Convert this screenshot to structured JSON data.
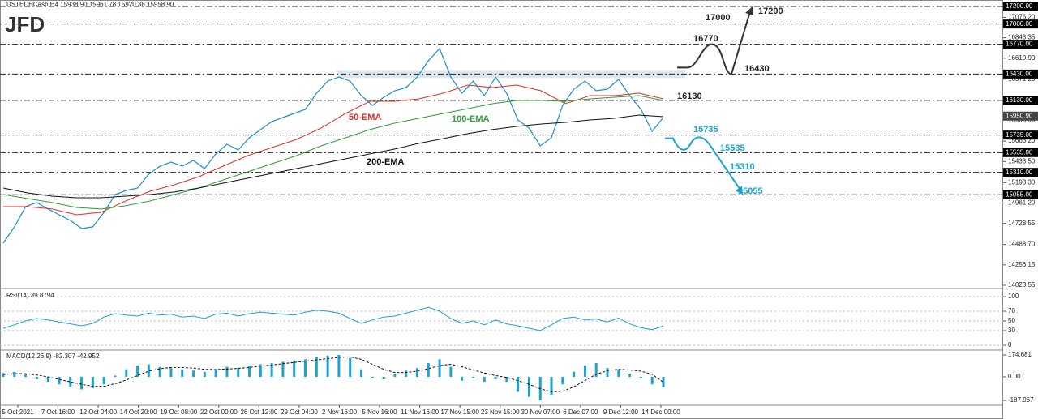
{
  "chart_data": [
    {
      "type": "line",
      "logo": "JFD",
      "header": "USTECHCash,H4  15938.90 15961.78 15920.38 15958.90",
      "ylim": [
        14023.55,
        17200
      ],
      "yticks": [
        {
          "value": 17076.2,
          "label": "17076.20"
        },
        16843.35,
        {
          "value": 16610.9,
          "label": "16610.90"
        },
        {
          "value": 16371.2,
          "label": "16371.20"
        },
        {
          "value": 15905.9,
          "label": "15905.90"
        },
        {
          "value": 15666.2,
          "label": "15666.20"
        },
        {
          "value": 15433.5,
          "label": "15433.50"
        },
        {
          "value": 15193.3,
          "label": "15193.30"
        },
        {
          "value": 14961.2,
          "label": "14961.20"
        },
        14728.55,
        {
          "value": 14488.7,
          "label": "14488.70"
        },
        14256.15,
        14023.55
      ],
      "levels": [
        {
          "value": 17200,
          "label": "17200.00",
          "color": "#222222"
        },
        {
          "value": 17000,
          "label": "17000.00",
          "color": "#222222"
        },
        {
          "value": 16770,
          "label": "16770.00",
          "color": "#222222"
        },
        {
          "value": 16430,
          "label": "16430.00",
          "color": "#222222"
        },
        {
          "value": 16130,
          "label": "16130.00",
          "color": "#222222"
        },
        {
          "value": 15735,
          "label": "15735.00",
          "color": "#1aa3d4"
        },
        {
          "value": 15535,
          "label": "15535.00",
          "color": "#1aa3d4"
        },
        {
          "value": 15310,
          "label": "15310.00",
          "color": "#1aa3d4"
        },
        {
          "value": 15055,
          "label": "15055.00",
          "color": "#1aa3d4"
        }
      ],
      "current": {
        "value": 15950.9,
        "label": "15950.90"
      },
      "series": [
        {
          "color": "#1e90c8",
          "values": [
            14504,
            14689,
            14920,
            14966,
            14892,
            14827,
            14762,
            14670,
            14689,
            14855,
            15058,
            15104,
            15132,
            15289,
            15381,
            15427,
            15381,
            15446,
            15353,
            15520,
            15630,
            15566,
            15704,
            15797,
            15889,
            15935,
            15981,
            16027,
            16212,
            16350,
            16396,
            16350,
            16184,
            16073,
            16165,
            16240,
            16277,
            16396,
            16581,
            16720,
            16396,
            16212,
            16350,
            16184,
            16396,
            16212,
            15907,
            15815,
            15612,
            15704,
            16073,
            16258,
            16350,
            16240,
            16258,
            16369,
            16184,
            16027,
            15778,
            15935
          ]
        },
        {
          "name": "50-EMA",
          "color": "#e0302a",
          "values": [
            14919,
            14919,
            14892,
            14827,
            14855,
            14984,
            15095,
            15169,
            15261,
            15381,
            15501,
            15593,
            15686,
            15815,
            15981,
            16120,
            16120,
            16147,
            16212,
            16304,
            16277,
            16304,
            16240,
            16092,
            16184,
            16184,
            16212,
            16147
          ]
        },
        {
          "name": "100-EMA",
          "color": "#2e9e3a",
          "values": [
            15058,
            15012,
            14966,
            14910,
            14892,
            14929,
            14984,
            15058,
            15132,
            15224,
            15316,
            15409,
            15501,
            15612,
            15704,
            15797,
            15870,
            15926,
            15981,
            16036,
            16092,
            16129,
            16129,
            16120,
            16147,
            16166,
            16184,
            16129
          ]
        },
        {
          "name": "200-EMA",
          "color": "#111111",
          "values": [
            15132,
            15076,
            15039,
            15021,
            15021,
            15039,
            15058,
            15086,
            15132,
            15187,
            15243,
            15298,
            15353,
            15409,
            15464,
            15520,
            15575,
            15640,
            15695,
            15751,
            15797,
            15833,
            15861,
            15880,
            15907,
            15926,
            15963,
            15944
          ]
        }
      ]
    },
    {
      "type": "line",
      "title": "RSI(14) 39.8794",
      "ylim": [
        0,
        100
      ],
      "yticks": [
        0,
        30,
        50,
        70,
        100
      ],
      "series": [
        {
          "color": "#1aa3d4",
          "values": [
            35,
            42,
            50,
            55,
            52,
            48,
            44,
            40,
            45,
            58,
            65,
            62,
            60,
            66,
            62,
            64,
            58,
            60,
            55,
            64,
            66,
            60,
            65,
            68,
            66,
            64,
            62,
            68,
            72,
            70,
            66,
            55,
            45,
            52,
            58,
            60,
            66,
            72,
            78,
            70,
            55,
            45,
            50,
            42,
            52,
            44,
            40,
            35,
            30,
            42,
            55,
            58,
            52,
            54,
            48,
            56,
            44,
            36,
            32,
            39.8794
          ]
        }
      ]
    },
    {
      "type": "bar",
      "title": "MACD(12,26,9) -82.307 -42.952",
      "ylim": [
        -187.967,
        174.681
      ],
      "yticks": [
        174.681,
        {
          "value": 0,
          "label": "0.00"
        },
        -187.967
      ],
      "xticks": [
        "5 Oct 2021",
        "7 Oct 16:00",
        "12 Oct 04:00",
        "14 Oct 20:00",
        "19 Oct 08:00",
        "22 Oct 00:00",
        "26 Oct 12:00",
        "29 Oct 04:00",
        "2 Nov 16:00",
        "5 Nov 16:00",
        "11 Nov 16:00",
        "17 Nov 15:00",
        "23 Nov 15:00",
        "30 Nov 07:00",
        "6 Dec 07:00",
        "9 Dec 12:00",
        "14 Dec 00:00"
      ],
      "series": [
        {
          "color": "#1aa3d4",
          "values": [
            30,
            40,
            20,
            -20,
            -40,
            -60,
            -80,
            -100,
            -90,
            -60,
            10,
            60,
            90,
            100,
            80,
            70,
            60,
            50,
            40,
            60,
            80,
            70,
            90,
            100,
            110,
            120,
            130,
            140,
            160,
            170,
            175,
            150,
            60,
            -10,
            -20,
            20,
            50,
            70,
            110,
            140,
            80,
            -30,
            -10,
            -40,
            -20,
            -40,
            -120,
            -160,
            -187,
            -150,
            -60,
            40,
            90,
            110,
            70,
            60,
            20,
            -10,
            -60,
            -82.307
          ]
        },
        {
          "color": "#111111",
          "values": [
            20,
            25,
            25,
            15,
            0,
            -20,
            -40,
            -60,
            -75,
            -75,
            -55,
            -25,
            10,
            45,
            65,
            75,
            75,
            70,
            60,
            58,
            62,
            68,
            75,
            85,
            95,
            105,
            115,
            125,
            135,
            145,
            155,
            160,
            140,
            100,
            60,
            35,
            35,
            45,
            65,
            90,
            100,
            80,
            55,
            30,
            10,
            -5,
            -30,
            -60,
            -95,
            -120,
            -115,
            -80,
            -30,
            20,
            50,
            60,
            55,
            45,
            20,
            -42.952
          ]
        }
      ]
    }
  ]
}
